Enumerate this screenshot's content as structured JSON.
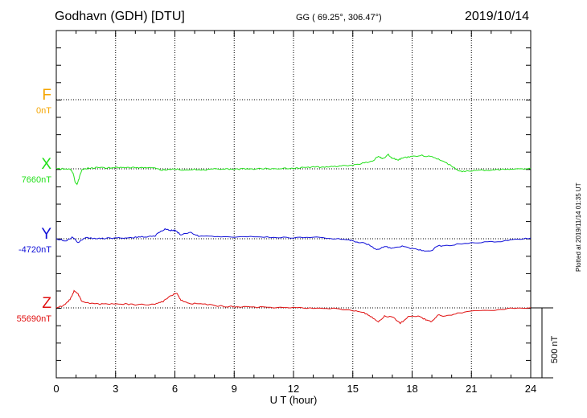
{
  "header": {
    "station": "Godhavn (GDH)  [DTU]",
    "coords": "GG ( 69.25°, 306.47°)",
    "date": "2019/10/14"
  },
  "plotted_stamp": "Plotted at 2019/11/14 01:35 UT",
  "scale": {
    "label": "500 nT",
    "value_nT": 500
  },
  "colors": {
    "F": "#f5a500",
    "X": "#22e01a",
    "Y": "#1010d8",
    "Z": "#e01010"
  },
  "chart_data": {
    "type": "line",
    "xlabel": "U T (hour)",
    "xlim": [
      0,
      24
    ],
    "xticks": [
      0,
      3,
      6,
      9,
      12,
      15,
      18,
      21,
      24
    ],
    "tick_labels": [
      "0",
      "3",
      "6",
      "9",
      "12",
      "15",
      "18",
      "21",
      "24"
    ],
    "units": "nT per 500 nT scale bar",
    "components": [
      {
        "name": "F",
        "baseline_label": "0nT",
        "baseline": 0,
        "points": []
      },
      {
        "name": "X",
        "baseline_label": "7660nT",
        "baseline": 7660,
        "points": [
          [
            0,
            7660
          ],
          [
            0.3,
            7660
          ],
          [
            0.7,
            7660
          ],
          [
            0.85,
            7630
          ],
          [
            0.95,
            7565
          ],
          [
            1.05,
            7550
          ],
          [
            1.15,
            7590
          ],
          [
            1.3,
            7655
          ],
          [
            1.6,
            7665
          ],
          [
            2,
            7668
          ],
          [
            2.5,
            7666
          ],
          [
            3,
            7668
          ],
          [
            3.5,
            7666
          ],
          [
            4,
            7670
          ],
          [
            4.5,
            7668
          ],
          [
            5,
            7665
          ],
          [
            5.3,
            7650
          ],
          [
            5.6,
            7655
          ],
          [
            6,
            7660
          ],
          [
            6.4,
            7648
          ],
          [
            7,
            7656
          ],
          [
            7.5,
            7650
          ],
          [
            8,
            7658
          ],
          [
            8.5,
            7660
          ],
          [
            9,
            7655
          ],
          [
            9.5,
            7660
          ],
          [
            10,
            7658
          ],
          [
            10.5,
            7662
          ],
          [
            11,
            7660
          ],
          [
            11.5,
            7665
          ],
          [
            12,
            7662
          ],
          [
            12.5,
            7670
          ],
          [
            13,
            7672
          ],
          [
            13.5,
            7670
          ],
          [
            14,
            7675
          ],
          [
            14.5,
            7680
          ],
          [
            15,
            7685
          ],
          [
            15.5,
            7700
          ],
          [
            16,
            7715
          ],
          [
            16.3,
            7750
          ],
          [
            16.5,
            7730
          ],
          [
            16.8,
            7760
          ],
          [
            17,
            7735
          ],
          [
            17.3,
            7725
          ],
          [
            17.6,
            7740
          ],
          [
            18,
            7748
          ],
          [
            18.5,
            7755
          ],
          [
            19,
            7745
          ],
          [
            19.5,
            7720
          ],
          [
            20,
            7680
          ],
          [
            20.4,
            7640
          ],
          [
            20.8,
            7645
          ],
          [
            21.3,
            7652
          ],
          [
            22,
            7650
          ],
          [
            22.5,
            7655
          ],
          [
            23,
            7658
          ],
          [
            23.5,
            7660
          ],
          [
            24,
            7662
          ]
        ]
      },
      {
        "name": "Y",
        "baseline_label": "-4720nT",
        "baseline": -4720,
        "points": [
          [
            0,
            -4720
          ],
          [
            0.5,
            -4735
          ],
          [
            0.8,
            -4710
          ],
          [
            1.1,
            -4745
          ],
          [
            1.5,
            -4712
          ],
          [
            2,
            -4720
          ],
          [
            2.5,
            -4718
          ],
          [
            3,
            -4715
          ],
          [
            3.5,
            -4712
          ],
          [
            4,
            -4710
          ],
          [
            4.5,
            -4705
          ],
          [
            5,
            -4700
          ],
          [
            5.2,
            -4675
          ],
          [
            5.5,
            -4650
          ],
          [
            5.8,
            -4660
          ],
          [
            6,
            -4662
          ],
          [
            6.3,
            -4690
          ],
          [
            6.8,
            -4675
          ],
          [
            7.2,
            -4700
          ],
          [
            8,
            -4705
          ],
          [
            9,
            -4708
          ],
          [
            10,
            -4705
          ],
          [
            11,
            -4710
          ],
          [
            12,
            -4712
          ],
          [
            13,
            -4710
          ],
          [
            14,
            -4718
          ],
          [
            14.8,
            -4728
          ],
          [
            15.3,
            -4745
          ],
          [
            15.8,
            -4760
          ],
          [
            16.2,
            -4800
          ],
          [
            16.6,
            -4775
          ],
          [
            17,
            -4790
          ],
          [
            17.5,
            -4770
          ],
          [
            18,
            -4790
          ],
          [
            18.5,
            -4805
          ],
          [
            18.9,
            -4812
          ],
          [
            19.3,
            -4770
          ],
          [
            19.8,
            -4770
          ],
          [
            20.5,
            -4755
          ],
          [
            21.5,
            -4745
          ],
          [
            22.5,
            -4738
          ],
          [
            23.2,
            -4728
          ],
          [
            24,
            -4715
          ]
        ]
      },
      {
        "name": "Z",
        "baseline_label": "55690nT",
        "baseline": 55690,
        "points": [
          [
            0,
            55690
          ],
          [
            0.4,
            55710
          ],
          [
            0.7,
            55750
          ],
          [
            0.9,
            55810
          ],
          [
            1.1,
            55790
          ],
          [
            1.3,
            55735
          ],
          [
            1.7,
            55720
          ],
          [
            2.2,
            55718
          ],
          [
            2.8,
            55720
          ],
          [
            3.5,
            55718
          ],
          [
            4,
            55712
          ],
          [
            5,
            55715
          ],
          [
            5.4,
            55735
          ],
          [
            5.8,
            55780
          ],
          [
            6.1,
            55795
          ],
          [
            6.3,
            55745
          ],
          [
            6.7,
            55720
          ],
          [
            7.3,
            55722
          ],
          [
            8,
            55705
          ],
          [
            9,
            55698
          ],
          [
            10,
            55695
          ],
          [
            11,
            55692
          ],
          [
            12,
            55690
          ],
          [
            13,
            55688
          ],
          [
            14,
            55685
          ],
          [
            15,
            55670
          ],
          [
            15.5,
            55660
          ],
          [
            15.9,
            55630
          ],
          [
            16.3,
            55590
          ],
          [
            16.6,
            55630
          ],
          [
            17,
            55625
          ],
          [
            17.4,
            55580
          ],
          [
            17.8,
            55625
          ],
          [
            18.3,
            55630
          ],
          [
            18.7,
            55605
          ],
          [
            19,
            55590
          ],
          [
            19.3,
            55640
          ],
          [
            19.7,
            55630
          ],
          [
            20.3,
            55650
          ],
          [
            21,
            55665
          ],
          [
            22,
            55672
          ],
          [
            23,
            55685
          ],
          [
            24,
            55692
          ]
        ]
      }
    ]
  }
}
